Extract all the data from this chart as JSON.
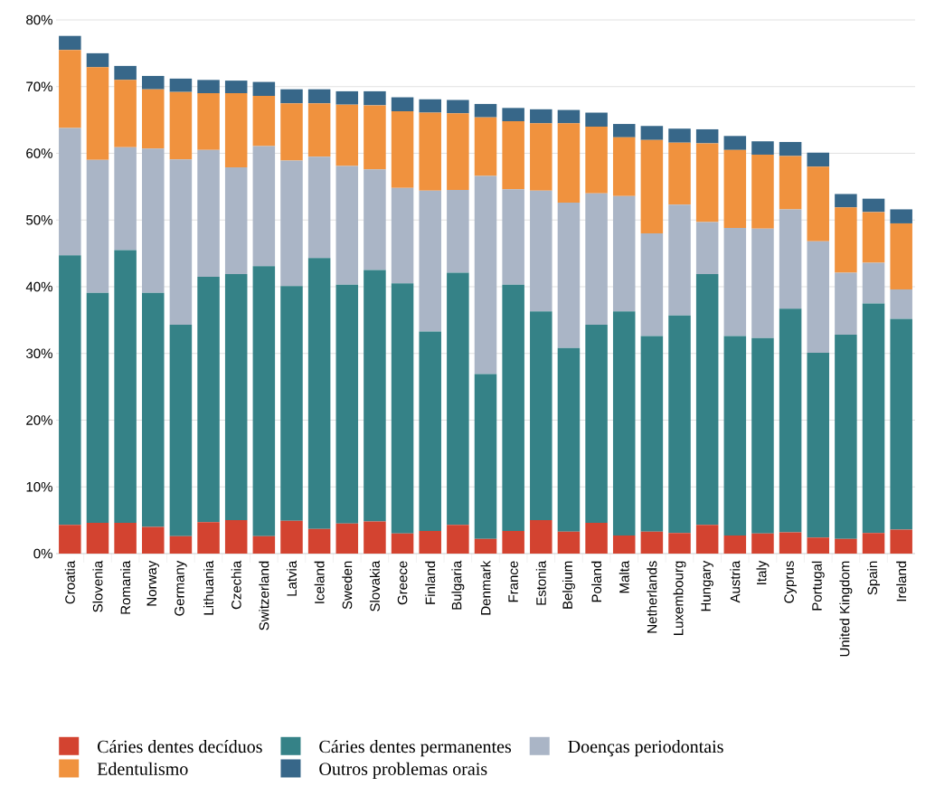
{
  "chart_data": {
    "type": "bar",
    "stacked": true,
    "categories": [
      "Croatia",
      "Slovenia",
      "Romania",
      "Norway",
      "Germany",
      "Lithuania",
      "Czechia",
      "Switzerland",
      "Latvia",
      "Iceland",
      "Sweden",
      "Slovakia",
      "Greece",
      "Finland",
      "Bulgaria",
      "Denmark",
      "France",
      "Estonia",
      "Belgium",
      "Poland",
      "Malta",
      "Netherlands",
      "Luxembourg",
      "Hungary",
      "Austria",
      "Italy",
      "Cyprus",
      "Portugal",
      "United Kingdom",
      "Spain",
      "Ireland"
    ],
    "series": [
      {
        "name": "Cáries dentes decíduos",
        "color": "#d34330",
        "values": [
          4.3,
          4.6,
          4.6,
          4.0,
          2.6,
          4.7,
          5.0,
          2.6,
          4.9,
          3.7,
          4.5,
          4.8,
          3.0,
          3.4,
          4.3,
          2.2,
          3.4,
          5.0,
          3.3,
          4.6,
          2.7,
          3.3,
          3.1,
          4.3,
          2.7,
          3.0,
          3.2,
          2.4,
          2.2,
          3.1,
          3.6
        ]
      },
      {
        "name": "Cáries dentes permanentes",
        "color": "#358287",
        "values": [
          40.4,
          34.5,
          40.9,
          35.1,
          31.7,
          36.8,
          36.9,
          40.5,
          35.2,
          40.6,
          35.8,
          37.7,
          37.5,
          29.9,
          37.8,
          24.7,
          36.9,
          31.3,
          27.5,
          29.7,
          33.6,
          29.3,
          32.6,
          37.6,
          29.9,
          29.3,
          33.5,
          27.7,
          30.6,
          34.4,
          31.6
        ]
      },
      {
        "name": "Doenças periodontais",
        "color": "#aab5c6",
        "values": [
          19.1,
          19.9,
          15.4,
          21.6,
          24.8,
          19.0,
          16.0,
          18.0,
          18.8,
          15.2,
          17.8,
          15.1,
          14.3,
          21.1,
          12.4,
          29.7,
          14.3,
          18.1,
          21.8,
          19.7,
          17.3,
          15.4,
          16.6,
          7.8,
          16.2,
          16.4,
          14.9,
          16.7,
          9.3,
          6.1,
          4.4
        ]
      },
      {
        "name": "Edentulismo",
        "color": "#f0923e",
        "values": [
          11.7,
          13.9,
          10.1,
          8.9,
          10.1,
          8.5,
          11.1,
          7.5,
          8.6,
          8.0,
          9.2,
          9.6,
          11.5,
          11.7,
          11.5,
          8.8,
          10.2,
          10.1,
          11.9,
          10.0,
          8.8,
          14.0,
          9.3,
          11.8,
          11.7,
          11.1,
          8.0,
          11.2,
          9.8,
          7.6,
          9.9
        ]
      },
      {
        "name": "Outros problemas orais",
        "color": "#376789",
        "values": [
          2.1,
          2.1,
          2.1,
          2.0,
          2.0,
          2.0,
          1.9,
          2.1,
          2.1,
          2.1,
          2.0,
          2.1,
          2.1,
          2.0,
          2.0,
          2.0,
          2.0,
          2.1,
          2.0,
          2.1,
          2.0,
          2.1,
          2.1,
          2.1,
          2.1,
          2.0,
          2.1,
          2.1,
          2.0,
          2.0,
          2.1
        ]
      }
    ],
    "ylim": [
      0,
      80
    ],
    "yticks": [
      {
        "value": 0,
        "label": "0%"
      },
      {
        "value": 10,
        "label": "10%"
      },
      {
        "value": 20,
        "label": "20%"
      },
      {
        "value": 30,
        "label": "30%"
      },
      {
        "value": 40,
        "label": "40%"
      },
      {
        "value": 50,
        "label": "50%"
      },
      {
        "value": 60,
        "label": "60%"
      },
      {
        "value": 70,
        "label": "70%"
      },
      {
        "value": 80,
        "label": "80%"
      }
    ],
    "grid": "y",
    "legend": "bottom"
  }
}
